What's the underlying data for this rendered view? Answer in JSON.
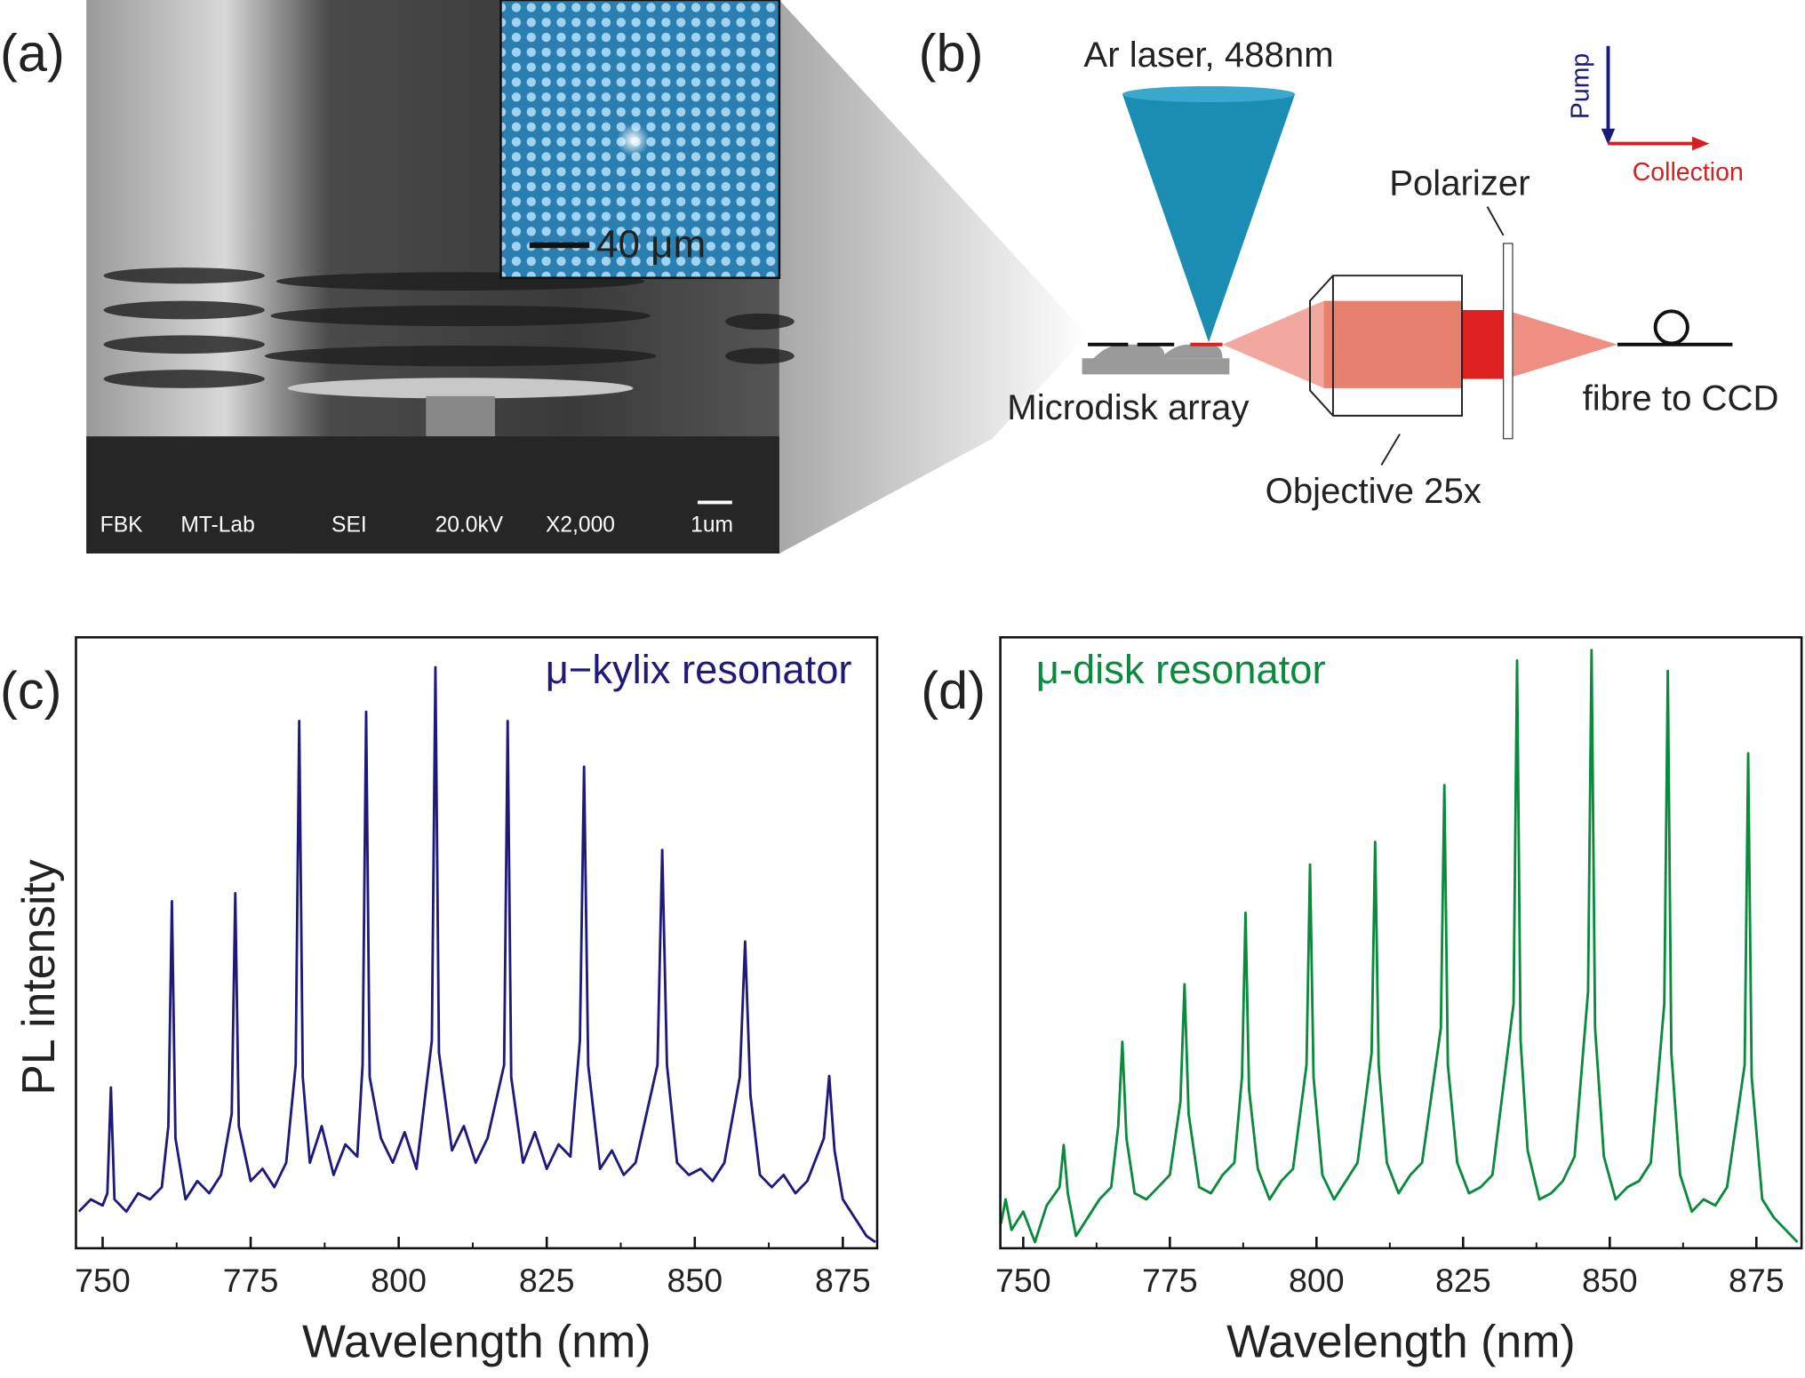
{
  "figure": {
    "panel_a": {
      "label": "(a)",
      "inset_scale_bar": "40 μm",
      "sem_info": [
        "FBK",
        "MT-Lab",
        "SEI",
        "20.0kV",
        "X2,000",
        "1um"
      ]
    },
    "panel_b": {
      "label": "(b)",
      "laser": "Ar laser, 488nm",
      "polarizer": "Polarizer",
      "sample": "Microdisk array",
      "objective": "Objective 25x",
      "fibre": "fibre to CCD",
      "pump": "Pump",
      "collection": "Collection"
    }
  },
  "chart_data": [
    {
      "type": "line",
      "label": "(c)",
      "annotation": "μ−kylix resonator",
      "x_label": "Wavelength (nm)",
      "y_label": "PL intensity",
      "color": "#1f1a7a",
      "x": [
        746,
        748,
        750,
        750.8,
        751.4,
        752,
        754,
        756,
        758,
        760,
        761.1,
        761.7,
        762.3,
        764,
        766,
        768,
        770,
        771.8,
        772.4,
        773,
        775,
        777,
        779,
        781,
        782.6,
        783.2,
        783.8,
        785,
        787,
        789,
        791,
        793,
        793.9,
        794.5,
        795.1,
        797,
        799,
        801,
        803,
        805.6,
        806.2,
        806.8,
        809,
        811,
        813,
        815,
        817.8,
        818.4,
        819,
        821,
        823,
        825,
        827,
        829,
        830.6,
        831.3,
        832,
        834,
        836,
        838,
        840,
        843.7,
        844.5,
        845.3,
        847,
        849,
        851,
        853,
        855,
        857.6,
        858.5,
        859.4,
        861,
        863,
        865,
        867,
        869,
        871.8,
        872.7,
        873.6,
        875,
        877,
        879,
        880.5
      ],
      "values": [
        6,
        8,
        7,
        9,
        26.3,
        8,
        6,
        9,
        8,
        10,
        20,
        56.8,
        18,
        8,
        11,
        9,
        12,
        22,
        58.1,
        20,
        11,
        13,
        10,
        14,
        30,
        86.3,
        28,
        14,
        20,
        12,
        17,
        15,
        30,
        87.8,
        28,
        18,
        14,
        19,
        13,
        34,
        95.1,
        32,
        16,
        20,
        14,
        18,
        30,
        86.3,
        28,
        14,
        19,
        13,
        17,
        15,
        34,
        78.8,
        30,
        13,
        16,
        12,
        14,
        30,
        65.2,
        30,
        14,
        12,
        13,
        11,
        14,
        28,
        50.2,
        25,
        12,
        10,
        12,
        9,
        11,
        18,
        28.2,
        16,
        8,
        5,
        2,
        1
      ],
      "xlim": [
        745.5,
        880.8
      ],
      "xticks": [
        750,
        775,
        800,
        825,
        850,
        875
      ],
      "xticks_minor": [
        762.5,
        787.5,
        812.5,
        837.5,
        862.5
      ],
      "ylim": [
        0,
        100
      ]
    },
    {
      "type": "line",
      "label": "(d)",
      "annotation": "μ-disk resonator",
      "x_label": "Wavelength (nm)",
      "color": "#0a8a3c",
      "x": [
        746.2,
        747,
        748,
        750,
        752,
        754,
        756.2,
        756.9,
        757.6,
        759,
        761,
        763,
        765,
        766.2,
        766.9,
        767.6,
        769,
        771,
        773,
        775,
        776.8,
        777.5,
        778.2,
        780,
        782,
        784,
        786,
        787.3,
        787.9,
        788.5,
        790,
        792,
        794,
        796,
        798.3,
        798.9,
        799.5,
        801,
        803,
        805,
        807,
        809.4,
        810,
        810.6,
        812,
        814,
        816,
        818,
        821.2,
        821.8,
        822.4,
        824,
        826,
        828,
        830,
        833.6,
        834.2,
        834.8,
        836,
        838,
        840,
        842,
        844,
        846.3,
        846.9,
        847.5,
        849,
        851,
        853,
        855,
        857,
        859.3,
        859.9,
        860.5,
        862,
        864,
        866,
        868,
        870,
        873,
        873.6,
        874.2,
        876,
        878,
        880,
        882
      ],
      "values": [
        4,
        8,
        3,
        6,
        1,
        7,
        10,
        16.9,
        9,
        2,
        5,
        8,
        10,
        20,
        33.8,
        18,
        9,
        8,
        10,
        12,
        24,
        43.2,
        22,
        10,
        9,
        12,
        14,
        28,
        54.9,
        26,
        13,
        8,
        11,
        13,
        30,
        62.8,
        28,
        12,
        8,
        11,
        14,
        32,
        66.5,
        30,
        14,
        9,
        12,
        14,
        36,
        75.8,
        30,
        14,
        9,
        10,
        12,
        40,
        96.2,
        34,
        16,
        8,
        9,
        11,
        15,
        42,
        97.9,
        36,
        15,
        8,
        10,
        11,
        14,
        40,
        94.5,
        32,
        12,
        6,
        8,
        7,
        10,
        30,
        81.0,
        28,
        8,
        5,
        3,
        1
      ],
      "xlim": [
        746.1,
        882.7
      ],
      "xticks": [
        750,
        775,
        800,
        825,
        850,
        875
      ],
      "xticks_minor": [
        762.5,
        787.5,
        812.5,
        837.5,
        862.5
      ],
      "ylim": [
        0,
        100
      ]
    }
  ]
}
